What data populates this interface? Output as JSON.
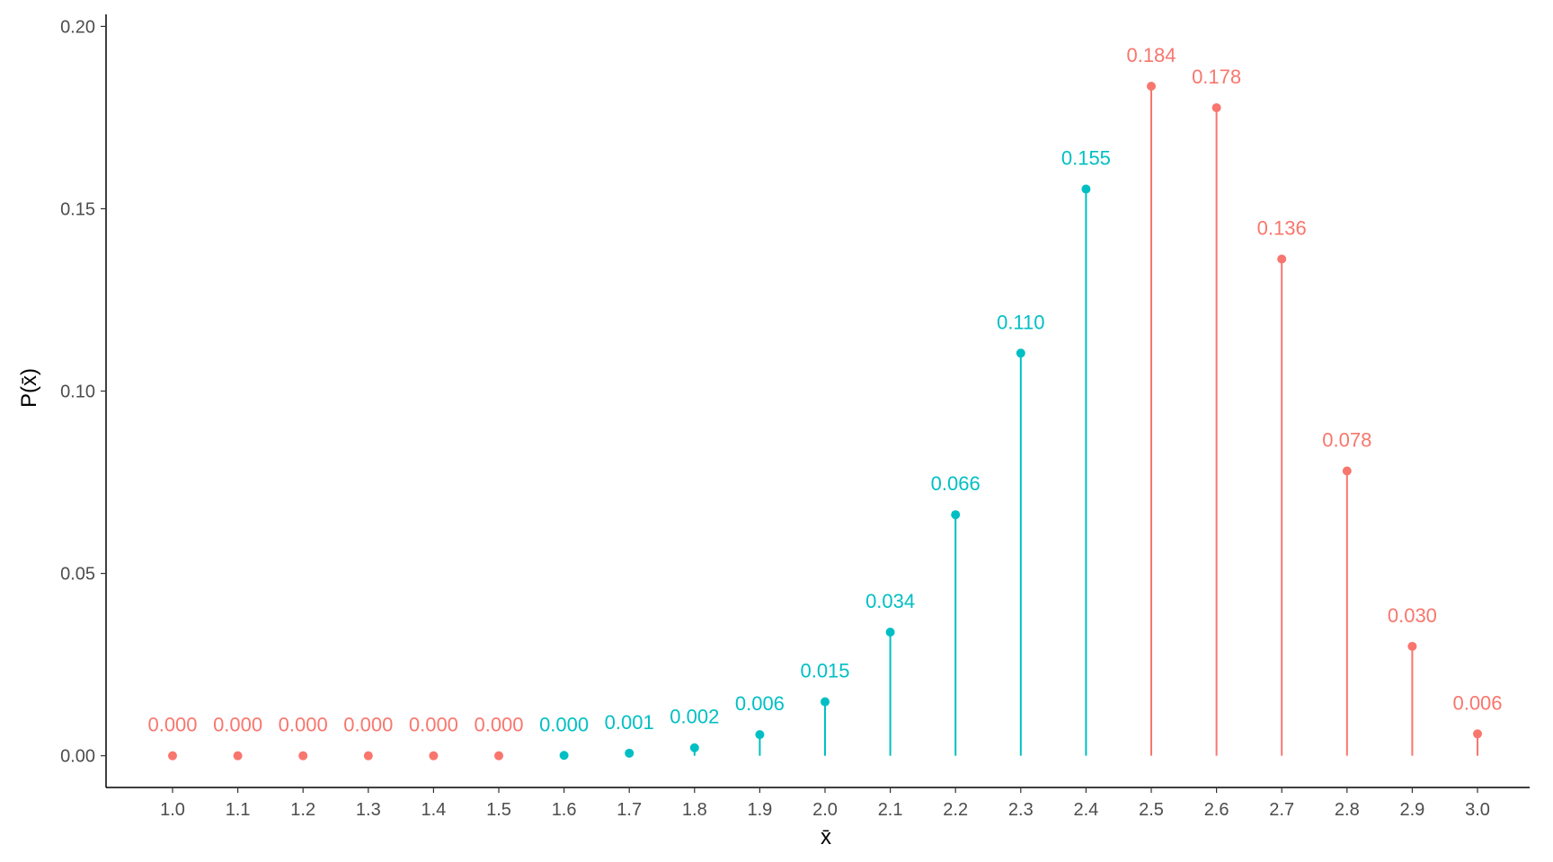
{
  "chart_data": {
    "type": "lollipop",
    "title": "",
    "xlabel": "x̄",
    "ylabel": "P(x̄)",
    "x": [
      "1.0",
      "1.1",
      "1.2",
      "1.3",
      "1.4",
      "1.5",
      "1.6",
      "1.7",
      "1.8",
      "1.9",
      "2.0",
      "2.1",
      "2.2",
      "2.3",
      "2.4",
      "2.5",
      "2.6",
      "2.7",
      "2.8",
      "2.9",
      "3.0"
    ],
    "values": [
      0.0,
      0.0,
      0.0,
      0.0,
      0.0,
      0.0,
      0.0001,
      0.0007,
      0.0022,
      0.0058,
      0.0148,
      0.0339,
      0.0661,
      0.1104,
      0.1554,
      0.1836,
      0.1777,
      0.1362,
      0.0781,
      0.03,
      0.006
    ],
    "labels": [
      "0.000",
      "0.000",
      "0.000",
      "0.000",
      "0.000",
      "0.000",
      "0.000",
      "0.001",
      "0.002",
      "0.006",
      "0.015",
      "0.034",
      "0.066",
      "0.110",
      "0.155",
      "0.184",
      "0.178",
      "0.136",
      "0.078",
      "0.030",
      "0.006"
    ],
    "groups": [
      "a",
      "a",
      "a",
      "a",
      "a",
      "a",
      "b",
      "b",
      "b",
      "b",
      "b",
      "b",
      "b",
      "b",
      "b",
      "a",
      "a",
      "a",
      "a",
      "a",
      "a"
    ],
    "group_colors": {
      "a": "#F8766D",
      "b": "#00BFC4"
    },
    "ylim": [
      -0.0087,
      0.2033
    ],
    "yticks": [
      0.0,
      0.05,
      0.1,
      0.15,
      0.2
    ],
    "ytick_labels": [
      "0.00",
      "0.05",
      "0.10",
      "0.15",
      "0.20"
    ],
    "grid": false,
    "legend": "none"
  }
}
